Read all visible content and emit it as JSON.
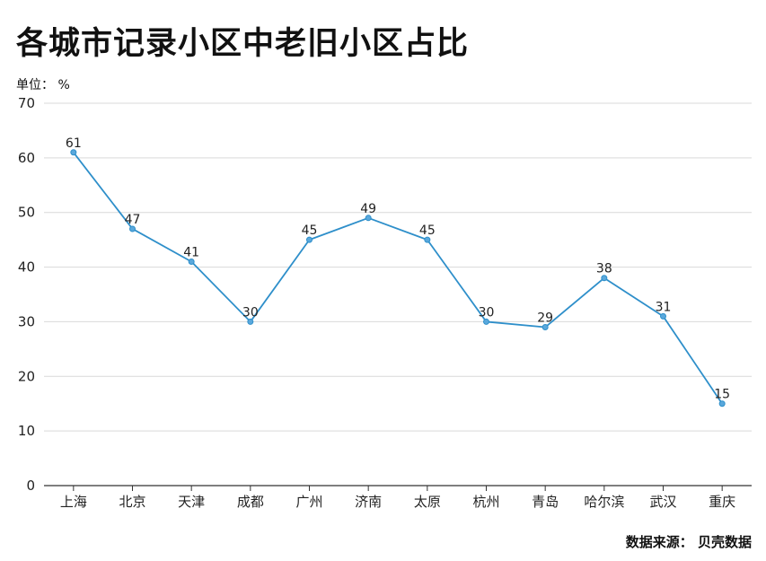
{
  "title": "各城市记录小区中老旧小区占比",
  "unit_label": "单位： %",
  "source": "数据来源： 贝壳数据",
  "colors": {
    "line": "#2e8fca",
    "grid": "#d9d9d9",
    "axis": "#333333"
  },
  "chart_data": {
    "type": "line",
    "title": "各城市记录小区中老旧小区占比",
    "xlabel": "",
    "ylabel": "单位： %",
    "ylim": [
      0,
      70
    ],
    "yticks": [
      0,
      10,
      20,
      30,
      40,
      50,
      60,
      70
    ],
    "grid": true,
    "categories": [
      "上海",
      "北京",
      "天津",
      "成都",
      "广州",
      "济南",
      "太原",
      "杭州",
      "青岛",
      "哈尔滨",
      "武汉",
      "重庆"
    ],
    "series": [
      {
        "values": [
          61,
          47,
          41,
          30,
          45,
          49,
          45,
          30,
          29,
          38,
          31,
          15
        ]
      }
    ]
  }
}
